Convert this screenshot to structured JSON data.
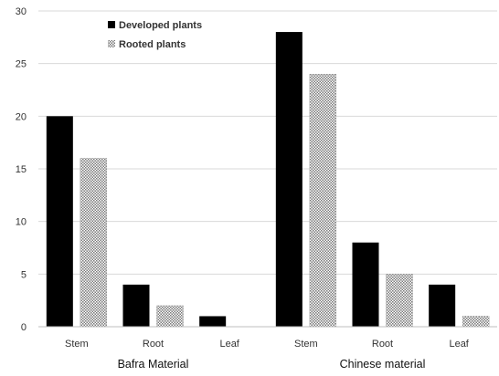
{
  "chart_data": {
    "type": "bar",
    "title": "",
    "xlabel": "",
    "ylabel": "",
    "ylim": [
      0,
      30
    ],
    "yticks": [
      0,
      5,
      10,
      15,
      20,
      25,
      30
    ],
    "grid": true,
    "legend_position": "top-left",
    "group_labels": [
      "Bafra Material",
      "Chinese material"
    ],
    "categories": [
      "Stem",
      "Root",
      "Leaf",
      "Stem",
      "Root",
      "Leaf"
    ],
    "series": [
      {
        "name": "Developed plants",
        "color": "#000000",
        "pattern": "solid",
        "values": [
          20,
          4,
          1,
          28,
          8,
          4
        ]
      },
      {
        "name": "Rooted plants",
        "color": "#8c8c8c",
        "pattern": "checkered",
        "values": [
          16,
          2,
          0,
          24,
          5,
          1
        ]
      }
    ]
  }
}
